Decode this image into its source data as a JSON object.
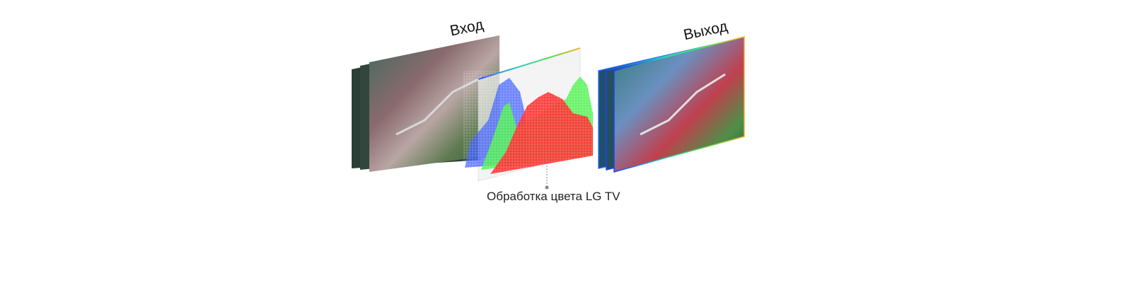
{
  "labels": {
    "input": "Вход",
    "output": "Выход",
    "processing": "Обработка цвета LG TV"
  },
  "colors": {
    "histogram_red": "#ff2a2a",
    "histogram_green": "#4cf24c",
    "histogram_blue": "#3b5cff",
    "landscape_red": "#b5485a",
    "landscape_green": "#4f7a4a",
    "landscape_blue": "#6a8fb0"
  }
}
